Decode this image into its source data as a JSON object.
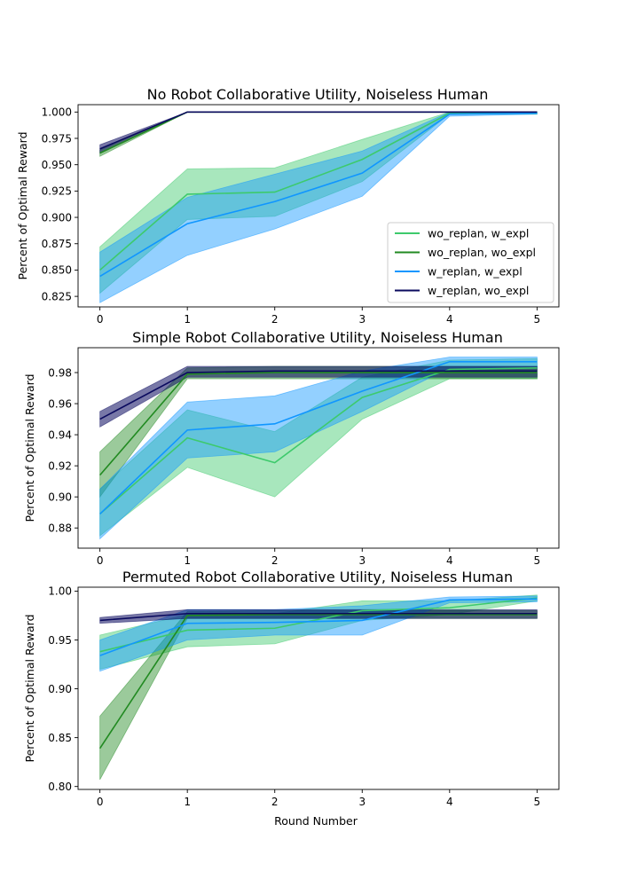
{
  "colors": {
    "wo_replan_w_expl": "#3dca6c",
    "wo_replan_wo_expl": "#218a21",
    "w_replan_w_expl": "#1096ff",
    "w_replan_wo_expl": "#0a0a5e"
  },
  "xlabel": "Round Number",
  "chart_data": [
    {
      "type": "line",
      "title": "No Robot Collaborative Utility, Noiseless Human",
      "xlabel": "",
      "ylabel": "Percent of Optimal Reward",
      "x": [
        0,
        1,
        2,
        3,
        4,
        5
      ],
      "xticks": [
        "0",
        "1",
        "2",
        "3",
        "4",
        "5"
      ],
      "ylim": [
        0.815,
        1.007
      ],
      "yticks": [
        0.825,
        0.85,
        0.875,
        0.9,
        0.925,
        0.95,
        0.975,
        1.0
      ],
      "ytick_labels": [
        "0.825",
        "0.850",
        "0.875",
        "0.900",
        "0.925",
        "0.950",
        "0.975",
        "1.000"
      ],
      "legend": {
        "placement": "bottom-right",
        "entries": [
          "wo_replan, w_expl",
          "wo_replan, wo_expl",
          "w_replan, w_expl",
          "w_replan, wo_expl"
        ]
      },
      "series": [
        {
          "name": "wo_replan, w_expl",
          "color_key": "wo_replan_w_expl",
          "values": [
            0.85,
            0.922,
            0.924,
            0.955,
            0.999,
            0.999
          ],
          "lower": [
            0.828,
            0.898,
            0.901,
            0.934,
            0.998,
            0.998
          ],
          "upper": [
            0.872,
            0.946,
            0.947,
            0.974,
            1.0,
            1.0
          ]
        },
        {
          "name": "wo_replan, wo_expl",
          "color_key": "wo_replan_wo_expl",
          "values": [
            0.961,
            1.0,
            1.0,
            1.0,
            1.0,
            1.0
          ],
          "lower": [
            0.958,
            1.0,
            1.0,
            1.0,
            1.0,
            1.0
          ],
          "upper": [
            0.964,
            1.0,
            1.0,
            1.0,
            1.0,
            1.0
          ]
        },
        {
          "name": "w_replan, w_expl",
          "color_key": "w_replan_w_expl",
          "values": [
            0.844,
            0.894,
            0.915,
            0.942,
            0.998,
            0.999
          ],
          "lower": [
            0.819,
            0.864,
            0.889,
            0.92,
            0.996,
            0.998
          ],
          "upper": [
            0.867,
            0.919,
            0.941,
            0.963,
            1.0,
            1.0
          ]
        },
        {
          "name": "w_replan, wo_expl",
          "color_key": "w_replan_wo_expl",
          "values": [
            0.965,
            1.0,
            1.0,
            1.0,
            1.0,
            1.0
          ],
          "lower": [
            0.961,
            1.0,
            1.0,
            1.0,
            1.0,
            1.0
          ],
          "upper": [
            0.969,
            1.0,
            1.0,
            1.0,
            1.0,
            1.0
          ]
        }
      ]
    },
    {
      "type": "line",
      "title": "Simple Robot Collaborative Utility, Noiseless Human",
      "xlabel": "",
      "ylabel": "Percent of Optimal Reward",
      "x": [
        0,
        1,
        2,
        3,
        4,
        5
      ],
      "xticks": [
        "0",
        "1",
        "2",
        "3",
        "4",
        "5"
      ],
      "ylim": [
        0.867,
        0.996
      ],
      "yticks": [
        0.88,
        0.9,
        0.92,
        0.94,
        0.96,
        0.98
      ],
      "ytick_labels": [
        "0.88",
        "0.90",
        "0.92",
        "0.94",
        "0.96",
        "0.98"
      ],
      "series": [
        {
          "name": "wo_replan, w_expl",
          "color_key": "wo_replan_w_expl",
          "values": [
            0.889,
            0.938,
            0.922,
            0.964,
            0.982,
            0.983
          ],
          "lower": [
            0.875,
            0.919,
            0.9,
            0.95,
            0.976,
            0.976
          ],
          "upper": [
            0.905,
            0.956,
            0.942,
            0.977,
            0.988,
            0.989
          ]
        },
        {
          "name": "wo_replan, wo_expl",
          "color_key": "wo_replan_wo_expl",
          "values": [
            0.914,
            0.979,
            0.98,
            0.98,
            0.98,
            0.98
          ],
          "lower": [
            0.9,
            0.976,
            0.976,
            0.976,
            0.976,
            0.976
          ],
          "upper": [
            0.929,
            0.983,
            0.984,
            0.984,
            0.984,
            0.984
          ]
        },
        {
          "name": "w_replan, w_expl",
          "color_key": "w_replan_w_expl",
          "values": [
            0.889,
            0.943,
            0.947,
            0.968,
            0.987,
            0.987
          ],
          "lower": [
            0.873,
            0.925,
            0.929,
            0.955,
            0.983,
            0.983
          ],
          "upper": [
            0.905,
            0.961,
            0.965,
            0.981,
            0.99,
            0.99
          ]
        },
        {
          "name": "w_replan, wo_expl",
          "color_key": "w_replan_wo_expl",
          "values": [
            0.95,
            0.98,
            0.981,
            0.981,
            0.981,
            0.981
          ],
          "lower": [
            0.945,
            0.977,
            0.977,
            0.977,
            0.977,
            0.977
          ],
          "upper": [
            0.955,
            0.984,
            0.984,
            0.984,
            0.984,
            0.984
          ]
        }
      ]
    },
    {
      "type": "line",
      "title": "Permuted Robot Collaborative Utility, Noiseless Human",
      "xlabel": "Round Number",
      "ylabel": "Percent of Optimal Reward",
      "x": [
        0,
        1,
        2,
        3,
        4,
        5
      ],
      "xticks": [
        "0",
        "1",
        "2",
        "3",
        "4",
        "5"
      ],
      "ylim": [
        0.797,
        1.004
      ],
      "yticks": [
        0.8,
        0.85,
        0.9,
        0.95,
        1.0
      ],
      "ytick_labels": [
        "0.80",
        "0.85",
        "0.90",
        "0.95",
        "1.00"
      ],
      "series": [
        {
          "name": "wo_replan, w_expl",
          "color_key": "wo_replan_w_expl",
          "values": [
            0.938,
            0.96,
            0.962,
            0.98,
            0.983,
            0.993
          ],
          "lower": [
            0.92,
            0.943,
            0.946,
            0.97,
            0.976,
            0.99
          ],
          "upper": [
            0.955,
            0.976,
            0.977,
            0.99,
            0.99,
            0.996
          ]
        },
        {
          "name": "wo_replan, wo_expl",
          "color_key": "wo_replan_wo_expl",
          "values": [
            0.839,
            0.975,
            0.976,
            0.976,
            0.976,
            0.976
          ],
          "lower": [
            0.807,
            0.972,
            0.972,
            0.972,
            0.972,
            0.972
          ],
          "upper": [
            0.872,
            0.979,
            0.98,
            0.98,
            0.98,
            0.98
          ]
        },
        {
          "name": "w_replan, w_expl",
          "color_key": "w_replan_w_expl",
          "values": [
            0.934,
            0.967,
            0.968,
            0.97,
            0.991,
            0.992
          ],
          "lower": [
            0.918,
            0.95,
            0.955,
            0.955,
            0.988,
            0.989
          ],
          "upper": [
            0.95,
            0.981,
            0.981,
            0.985,
            0.994,
            0.995
          ]
        },
        {
          "name": "w_replan, wo_expl",
          "color_key": "w_replan_wo_expl",
          "values": [
            0.97,
            0.977,
            0.977,
            0.977,
            0.977,
            0.977
          ],
          "lower": [
            0.967,
            0.972,
            0.972,
            0.972,
            0.972,
            0.972
          ],
          "upper": [
            0.973,
            0.981,
            0.981,
            0.981,
            0.981,
            0.981
          ]
        }
      ]
    }
  ]
}
